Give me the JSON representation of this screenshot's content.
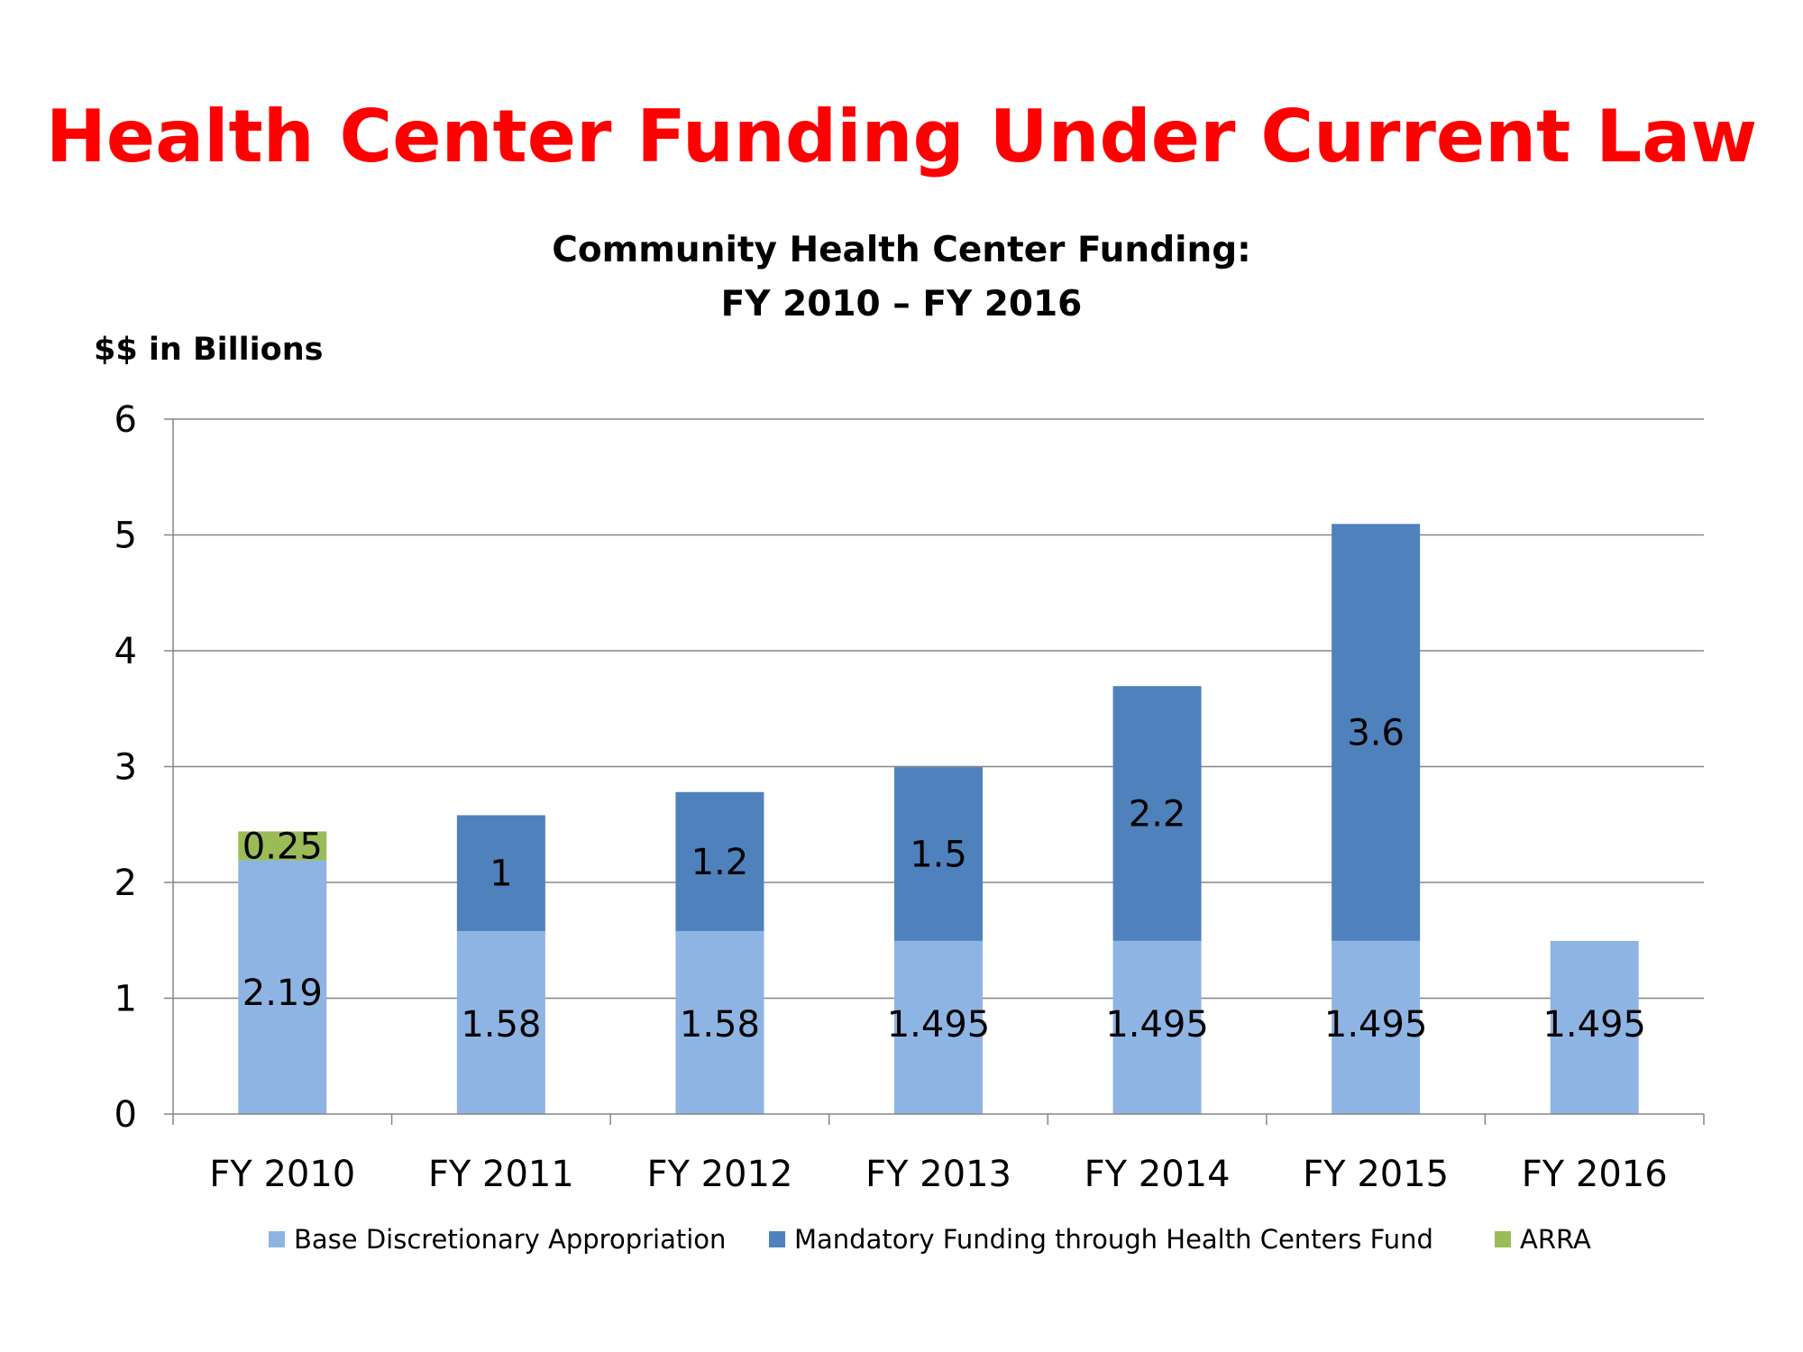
{
  "slide_title": "Health Center Funding Under Current Law",
  "chart_data": {
    "type": "bar",
    "stacked": true,
    "title_lines": [
      "Community Health Center Funding:",
      "FY 2010 – FY 2016"
    ],
    "ylabel": "$$ in Billions",
    "xlabel": "",
    "ylim": [
      0,
      6
    ],
    "yticks": [
      0,
      1,
      2,
      3,
      4,
      5,
      6
    ],
    "grid": true,
    "legend_position": "bottom",
    "categories": [
      "FY 2010",
      "FY 2011",
      "FY 2012",
      "FY 2013",
      "FY 2014",
      "FY 2015",
      "FY 2016"
    ],
    "series": [
      {
        "name": "Base Discretionary Appropriation",
        "color": "#8eb4e3",
        "values": [
          2.19,
          1.58,
          1.58,
          1.495,
          1.495,
          1.495,
          1.495
        ],
        "labels": [
          "2.19",
          "1.58",
          "1.58",
          "1.495",
          "1.495",
          "1.495",
          "1.495"
        ]
      },
      {
        "name": "Mandatory Funding through Health Centers Fund",
        "color": "#4f81bd",
        "values": [
          0,
          1,
          1.2,
          1.5,
          2.2,
          3.6,
          0
        ],
        "labels": [
          "",
          "1",
          "1.2",
          "1.5",
          "2.2",
          "3.6",
          ""
        ]
      },
      {
        "name": "ARRA",
        "color": "#9bbb59",
        "values": [
          0.25,
          0,
          0,
          0,
          0,
          0,
          0
        ],
        "labels": [
          "0.25",
          "",
          "",
          "",
          "",
          "",
          ""
        ]
      }
    ]
  }
}
